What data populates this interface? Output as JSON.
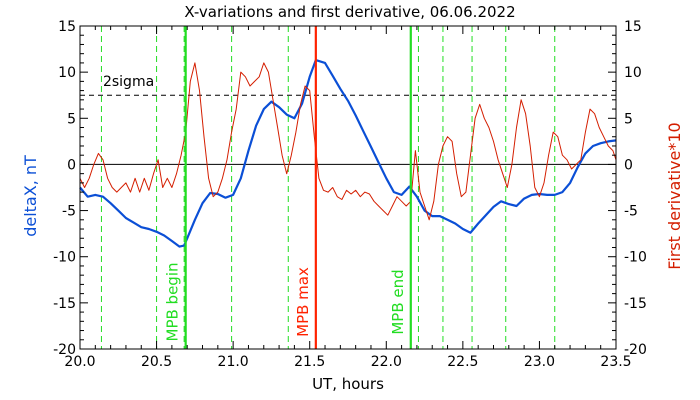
{
  "chart_data": {
    "type": "line",
    "title": "X-variations and first derivative, 06.06.2022",
    "xlabel": "UT, hours",
    "ylabel_left": "deltaX, nT",
    "ylabel_right": "First derivative*10",
    "xlim": [
      20.0,
      23.5
    ],
    "ylim": [
      -20,
      15
    ],
    "x_ticks": [
      20.0,
      20.5,
      21.0,
      21.5,
      22.0,
      22.5,
      23.0,
      23.5
    ],
    "x_tick_labels": [
      "20.0",
      "20.5",
      "21.0",
      "21.5",
      "22.0",
      "22.5",
      "23.0",
      "23.5"
    ],
    "y_ticks": [
      -20,
      -15,
      -10,
      -5,
      0,
      5,
      10,
      15
    ],
    "y_tick_labels": [
      "-20",
      "-15",
      "-10",
      "-5",
      "0",
      "5",
      "10",
      "15"
    ],
    "colors": {
      "deltaX": "#0b4fd6",
      "derivative": "#d41e00",
      "markers_green": "#22dd22",
      "marker_red": "#ff2200",
      "zero_line": "#000000",
      "threshold": "#000000",
      "left_label": "#0b4fd6",
      "right_label": "#d41e00"
    },
    "threshold": {
      "value": 7.5,
      "label": "2sigma"
    },
    "green_dashed_x": [
      20.14,
      20.5,
      20.68,
      20.99,
      21.36,
      22.21,
      22.37,
      22.56,
      22.78,
      23.1
    ],
    "vertical_markers": [
      {
        "x": 20.69,
        "label": "MPB begin",
        "color": "#22dd22"
      },
      {
        "x": 21.54,
        "label": "MPB max",
        "color": "#ff2200"
      },
      {
        "x": 22.16,
        "label": "MPB end",
        "color": "#22dd22"
      }
    ],
    "series": [
      {
        "key": "deltaX",
        "x": [
          20.0,
          20.05,
          20.1,
          20.15,
          20.2,
          20.25,
          20.3,
          20.35,
          20.4,
          20.45,
          20.5,
          20.55,
          20.6,
          20.65,
          20.68,
          20.7,
          20.75,
          20.8,
          20.85,
          20.9,
          20.95,
          21.0,
          21.05,
          21.1,
          21.15,
          21.2,
          21.25,
          21.3,
          21.35,
          21.4,
          21.45,
          21.5,
          21.54,
          21.6,
          21.65,
          21.7,
          21.75,
          21.8,
          21.85,
          21.9,
          21.95,
          22.0,
          22.05,
          22.1,
          22.15,
          22.2,
          22.25,
          22.3,
          22.35,
          22.4,
          22.45,
          22.5,
          22.55,
          22.6,
          22.65,
          22.7,
          22.75,
          22.8,
          22.85,
          22.9,
          22.95,
          23.0,
          23.05,
          23.1,
          23.15,
          23.2,
          23.25,
          23.3,
          23.35,
          23.4,
          23.45,
          23.5
        ],
        "values": [
          -2.5,
          -3.5,
          -3.3,
          -3.5,
          -4.2,
          -5.0,
          -5.8,
          -6.3,
          -6.8,
          -7.0,
          -7.3,
          -7.7,
          -8.3,
          -8.9,
          -8.8,
          -8.0,
          -6.0,
          -4.2,
          -3.1,
          -3.2,
          -3.6,
          -3.3,
          -1.5,
          1.5,
          4.2,
          6.0,
          6.8,
          6.2,
          5.4,
          5.0,
          6.6,
          9.5,
          11.3,
          11.0,
          9.6,
          8.2,
          6.9,
          5.3,
          3.6,
          1.9,
          0.2,
          -1.5,
          -3.0,
          -3.3,
          -2.4,
          -3.5,
          -5.0,
          -5.6,
          -5.6,
          -6.0,
          -6.4,
          -7.0,
          -7.4,
          -6.4,
          -5.5,
          -4.6,
          -4.0,
          -4.3,
          -4.5,
          -3.7,
          -3.3,
          -3.2,
          -3.3,
          -3.3,
          -3.0,
          -2.0,
          -0.3,
          1.2,
          2.0,
          2.3,
          2.5,
          2.6
        ]
      },
      {
        "key": "derivative",
        "x": [
          20.0,
          20.03,
          20.06,
          20.09,
          20.12,
          20.15,
          20.18,
          20.21,
          20.24,
          20.27,
          20.3,
          20.33,
          20.36,
          20.39,
          20.42,
          20.45,
          20.48,
          20.51,
          20.54,
          20.57,
          20.6,
          20.63,
          20.66,
          20.69,
          20.72,
          20.75,
          20.78,
          20.81,
          20.84,
          20.87,
          20.9,
          20.93,
          20.96,
          20.99,
          21.02,
          21.05,
          21.08,
          21.11,
          21.14,
          21.17,
          21.2,
          21.23,
          21.26,
          21.29,
          21.32,
          21.35,
          21.38,
          21.41,
          21.44,
          21.47,
          21.5,
          21.53,
          21.56,
          21.59,
          21.62,
          21.65,
          21.68,
          21.71,
          21.74,
          21.77,
          21.8,
          21.83,
          21.86,
          21.89,
          21.92,
          21.95,
          21.98,
          22.01,
          22.04,
          22.07,
          22.1,
          22.13,
          22.16,
          22.19,
          22.22,
          22.25,
          22.28,
          22.31,
          22.34,
          22.37,
          22.4,
          22.43,
          22.46,
          22.49,
          22.52,
          22.55,
          22.58,
          22.61,
          22.64,
          22.67,
          22.7,
          22.73,
          22.76,
          22.79,
          22.82,
          22.85,
          22.88,
          22.91,
          22.94,
          22.97,
          23.0,
          23.03,
          23.06,
          23.09,
          23.12,
          23.15,
          23.18,
          23.21,
          23.24,
          23.27,
          23.3,
          23.33,
          23.36,
          23.39,
          23.42,
          23.45,
          23.48,
          23.5
        ],
        "values": [
          -1.5,
          -2.5,
          -1.5,
          0.0,
          1.2,
          0.5,
          -1.5,
          -2.5,
          -3.0,
          -2.5,
          -2.0,
          -3.0,
          -1.5,
          -3.0,
          -1.5,
          -2.8,
          -1.0,
          0.5,
          -2.5,
          -1.5,
          -2.5,
          -1.0,
          1.0,
          3.5,
          9.0,
          11.0,
          8.0,
          3.0,
          -1.5,
          -3.5,
          -3.0,
          -1.5,
          0.5,
          3.5,
          6.0,
          10.0,
          9.5,
          8.5,
          9.0,
          9.5,
          11.0,
          10.0,
          7.0,
          4.0,
          1.0,
          -1.0,
          1.0,
          3.5,
          6.5,
          8.5,
          8.0,
          3.0,
          -1.5,
          -2.8,
          -3.0,
          -2.5,
          -3.5,
          -3.8,
          -2.8,
          -3.2,
          -2.8,
          -3.5,
          -3.0,
          -3.2,
          -4.0,
          -4.5,
          -5.0,
          -5.5,
          -4.5,
          -3.5,
          -4.0,
          -4.5,
          -4.0,
          1.5,
          -3.0,
          -4.5,
          -6.0,
          -4.0,
          0.0,
          2.0,
          3.0,
          2.5,
          -1.0,
          -3.5,
          -3.0,
          1.0,
          5.0,
          6.5,
          5.0,
          4.0,
          2.5,
          0.5,
          -1.0,
          -2.5,
          0.0,
          4.0,
          7.0,
          5.5,
          2.0,
          -2.5,
          -3.5,
          -2.0,
          1.0,
          3.5,
          3.0,
          1.0,
          0.5,
          -0.5,
          0.0,
          0.5,
          3.5,
          6.0,
          5.5,
          4.0,
          3.0,
          2.0,
          1.5,
          0.5
        ]
      }
    ]
  }
}
